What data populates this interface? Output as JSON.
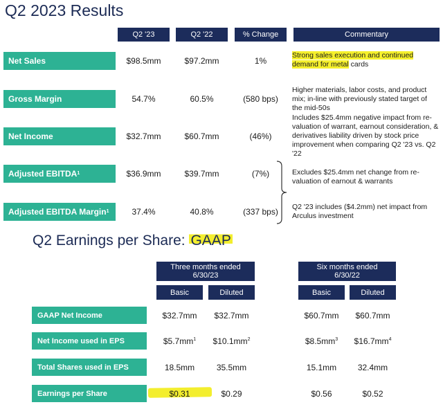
{
  "results": {
    "title": "Q2 2023 Results",
    "headers": [
      "Q2 '23",
      "Q2 '22",
      "% Change",
      "Commentary"
    ],
    "rows": [
      {
        "label": "Net Sales",
        "q2_23": "$98.5mm",
        "q2_22": "$97.2mm",
        "change": "1%",
        "commentary_highlight": "Strong sales execution and continued demand for metal",
        "commentary_rest": " cards"
      },
      {
        "label": "Gross Margin",
        "q2_23": "54.7%",
        "q2_22": "60.5%",
        "change": "(580 bps)",
        "commentary": "Higher materials, labor costs, and product mix; in-line with previously stated target of the mid-50s"
      },
      {
        "label": "Net Income",
        "q2_23": "$32.7mm",
        "q2_22": "$60.7mm",
        "change": "(46%)",
        "commentary": "Includes $25.4mm negative impact from re-valuation of warrant, earnout consideration, & derivatives liability driven by stock price improvement when comparing Q2 '23 vs. Q2 '22"
      },
      {
        "label": "Adjusted EBITDA",
        "label_sup": "1",
        "q2_23": "$36.9mm",
        "q2_22": "$39.7mm",
        "change": "(7%)",
        "commentary": "Excludes $25.4mm net change from re-valuation of earnout & warrants"
      },
      {
        "label": "Adjusted EBITDA Margin",
        "label_sup": "1",
        "q2_23": "37.4%",
        "q2_22": "40.8%",
        "change": "(337 bps)",
        "commentary": "Q2 '23 includes ($4.2mm) net impact from Arculus investment"
      }
    ]
  },
  "eps": {
    "title_main": "Q2 Earnings per Share: ",
    "title_highlight": "GAAP",
    "group1": "Three months ended 6/30/23",
    "group2": "Six months ended 6/30/22",
    "basic": "Basic",
    "diluted": "Diluted",
    "rows": [
      {
        "label": "GAAP Net Income",
        "b1": "$32.7mm",
        "b1_sup": "",
        "d1": "$32.7mm",
        "d1_sup": "",
        "b2": "$60.7mm",
        "b2_sup": "",
        "d2": "$60.7mm",
        "d2_sup": ""
      },
      {
        "label": "Net Income used in EPS",
        "b1": "$5.7mm",
        "b1_sup": "1",
        "d1": "$10.1mm",
        "d1_sup": "2",
        "b2": "$8.5mm",
        "b2_sup": "3",
        "d2": "$16.7mm",
        "d2_sup": "4"
      },
      {
        "label": "Total Shares used in EPS",
        "b1": "18.5mm",
        "b1_sup": "",
        "d1": "35.5mm",
        "d1_sup": "",
        "b2": "15.1mm",
        "b2_sup": "",
        "d2": "32.4mm",
        "d2_sup": ""
      },
      {
        "label": "Earnings per Share",
        "b1": "$0.31",
        "b1_sup": "",
        "d1": "$0.29",
        "d1_sup": "",
        "b2": "$0.56",
        "b2_sup": "",
        "d2": "$0.52",
        "d2_sup": ""
      }
    ]
  }
}
